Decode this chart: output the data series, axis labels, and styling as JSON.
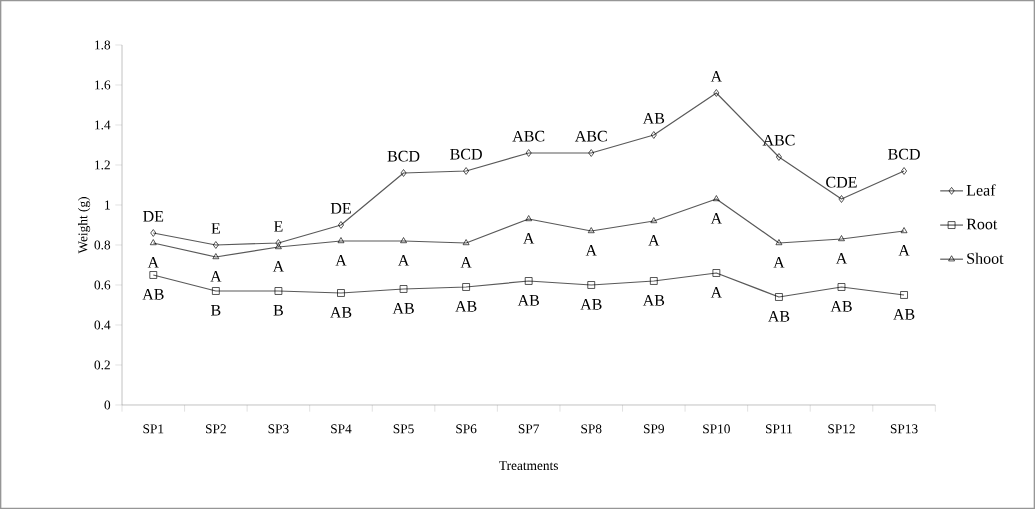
{
  "chart_data": {
    "type": "line",
    "xlabel": "Treatments",
    "ylabel": "Weight (g)",
    "categories": [
      "SP1",
      "SP2",
      "SP3",
      "SP4",
      "SP5",
      "SP6",
      "SP7",
      "SP8",
      "SP9",
      "SP10",
      "SP11",
      "SP12",
      "SP13"
    ],
    "series": [
      {
        "name": "Leaf",
        "color": "#595959",
        "marker": "diamond",
        "values": [
          0.86,
          0.8,
          0.81,
          0.9,
          1.16,
          1.17,
          1.26,
          1.26,
          1.35,
          1.56,
          1.24,
          1.03,
          1.17
        ]
      },
      {
        "name": "Root",
        "color": "#595959",
        "marker": "square",
        "values": [
          0.65,
          0.57,
          0.57,
          0.56,
          0.58,
          0.59,
          0.62,
          0.6,
          0.62,
          0.66,
          0.54,
          0.59,
          0.55
        ]
      },
      {
        "name": "Shoot",
        "color": "#595959",
        "marker": "triangle",
        "values": [
          0.81,
          0.74,
          0.79,
          0.82,
          0.82,
          0.81,
          0.93,
          0.87,
          0.92,
          1.03,
          0.81,
          0.83,
          0.87
        ]
      }
    ],
    "ylim": [
      0,
      1.8
    ],
    "yticks": [
      0,
      0.2,
      0.4,
      0.6,
      0.8,
      1,
      1.2,
      1.4,
      1.6,
      1.8
    ],
    "grid": false,
    "legend": "right",
    "line_style": "solid",
    "annotations": [
      {
        "text": "DE",
        "x": "SP1",
        "y": 0.86
      },
      {
        "text": "E",
        "x": "SP2",
        "y": 0.8
      },
      {
        "text": "E",
        "x": "SP3",
        "y": 0.81
      },
      {
        "text": "DE",
        "x": "SP4",
        "y": 0.9
      },
      {
        "text": "BCD",
        "x": "SP5",
        "y": 1.16
      },
      {
        "text": "BCD",
        "x": "SP6",
        "y": 1.17
      },
      {
        "text": "ABC",
        "x": "SP7",
        "y": 1.26
      },
      {
        "text": "ABC",
        "x": "SP8",
        "y": 1.26
      },
      {
        "text": "AB",
        "x": "SP9",
        "y": 1.35
      },
      {
        "text": "A",
        "x": "SP10",
        "y": 1.56
      },
      {
        "text": "ABC",
        "x": "SP11",
        "y": 1.24
      },
      {
        "text": "CDE",
        "x": "SP12",
        "y": 1.03
      },
      {
        "text": "BCD",
        "x": "SP13",
        "y": 1.17
      },
      {
        "text": "A",
        "x": "SP1",
        "y": 0.81
      },
      {
        "text": "A",
        "x": "SP2",
        "y": 0.74
      },
      {
        "text": "A",
        "x": "SP3",
        "y": 0.79
      },
      {
        "text": "A",
        "x": "SP4",
        "y": 0.82
      },
      {
        "text": "A",
        "x": "SP5",
        "y": 0.82
      },
      {
        "text": "A",
        "x": "SP6",
        "y": 0.81
      },
      {
        "text": "A",
        "x": "SP7",
        "y": 0.93
      },
      {
        "text": "A",
        "x": "SP8",
        "y": 0.87
      },
      {
        "text": "A",
        "x": "SP9",
        "y": 0.92
      },
      {
        "text": "A",
        "x": "SP10",
        "y": 1.03
      },
      {
        "text": "A",
        "x": "SP11",
        "y": 0.81
      },
      {
        "text": "A",
        "x": "SP12",
        "y": 0.83
      },
      {
        "text": "A",
        "x": "SP13",
        "y": 0.87
      },
      {
        "text": "AB",
        "x": "SP1",
        "y": 0.65
      },
      {
        "text": "B",
        "x": "SP2",
        "y": 0.57
      },
      {
        "text": "B",
        "x": "SP3",
        "y": 0.57
      },
      {
        "text": "AB",
        "x": "SP4",
        "y": 0.56
      },
      {
        "text": "AB",
        "x": "SP5",
        "y": 0.58
      },
      {
        "text": "AB",
        "x": "SP6",
        "y": 0.59
      },
      {
        "text": "AB",
        "x": "SP7",
        "y": 0.62
      },
      {
        "text": "AB",
        "x": "SP8",
        "y": 0.6
      },
      {
        "text": "AB",
        "x": "SP9",
        "y": 0.62
      },
      {
        "text": "A",
        "x": "SP10",
        "y": 0.66
      },
      {
        "text": "AB",
        "x": "SP11",
        "y": 0.54
      },
      {
        "text": "AB",
        "x": "SP12",
        "y": 0.59
      },
      {
        "text": "AB",
        "x": "SP13",
        "y": 0.55
      }
    ]
  }
}
